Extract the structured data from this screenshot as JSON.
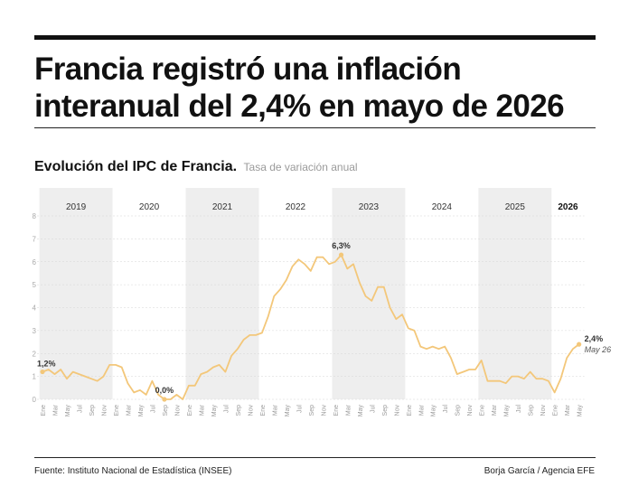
{
  "header": {
    "title": "Francia registró una inflación interanual del 2,4% en mayo de 2026"
  },
  "subtitle": {
    "main": "Evolución del IPC de Francia.",
    "light": "Tasa de variación anual"
  },
  "footer": {
    "source": "Fuente: Instituto Nacional de Estadística (INSEE)",
    "credit": "Borja García / Agencia EFE"
  },
  "colors": {
    "line": "#f3c77a",
    "band": "#eeeeee",
    "text": "#111111"
  },
  "chart_data": {
    "type": "line",
    "title": "Evolución del IPC de Francia.",
    "subtitle": "Tasa de variación anual",
    "ylim": [
      0,
      8
    ],
    "yticks": [
      "0",
      "1",
      "2",
      "3",
      "4",
      "5",
      "6",
      "7",
      "8"
    ],
    "grid": true,
    "years": [
      "2019",
      "2020",
      "2021",
      "2022",
      "2023",
      "2024",
      "2025",
      "2026"
    ],
    "highlight_year": "2026",
    "month_labels": [
      "Ene",
      "Mar",
      "May",
      "Jul",
      "Sep",
      "Nov"
    ],
    "month_labels_last_year": [
      "Ene",
      "Mar",
      "May"
    ],
    "series": [
      {
        "values": [
          1.2,
          1.3,
          1.1,
          1.3,
          0.9,
          1.2,
          1.1,
          1.0,
          0.9,
          0.8,
          1.0,
          1.5,
          1.5,
          1.4,
          0.7,
          0.3,
          0.4,
          0.2,
          0.8,
          0.2,
          0.0,
          0.0,
          0.2,
          0.0,
          0.6,
          0.6,
          1.1,
          1.2,
          1.4,
          1.5,
          1.2,
          1.9,
          2.2,
          2.6,
          2.8,
          2.8,
          2.9,
          3.6,
          4.5,
          4.8,
          5.2,
          5.8,
          6.1,
          5.9,
          5.6,
          6.2,
          6.2,
          5.9,
          6.0,
          6.3,
          5.7,
          5.9,
          5.1,
          4.5,
          4.3,
          4.9,
          4.9,
          4.0,
          3.5,
          3.7,
          3.1,
          3.0,
          2.3,
          2.2,
          2.3,
          2.2,
          2.3,
          1.8,
          1.1,
          1.2,
          1.3,
          1.3,
          1.7,
          0.8,
          0.8,
          0.8,
          0.7,
          1.0,
          1.0,
          0.9,
          1.2,
          0.9,
          0.9,
          0.8,
          0.3,
          0.9,
          1.8,
          2.2,
          2.4
        ]
      }
    ],
    "annotations": [
      {
        "index": 0,
        "label": "1,2%"
      },
      {
        "index": 20,
        "label": "0,0%"
      },
      {
        "index": 49,
        "label": "6,3%"
      },
      {
        "index": 88,
        "label": "2,4%",
        "sublabel": "May 26"
      }
    ]
  }
}
